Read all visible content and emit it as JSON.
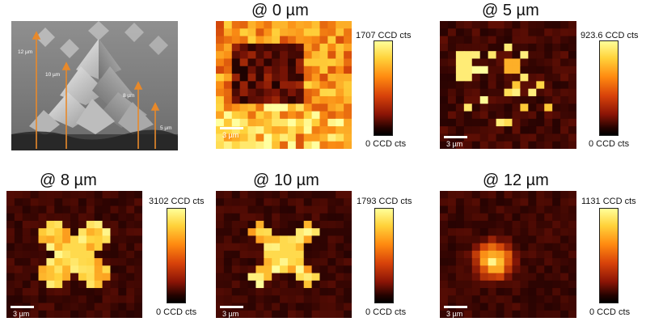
{
  "sem": {
    "icon": "sem-micrograph",
    "labels": [
      "12 µm",
      "10 µm",
      "8 µm",
      "5 µm"
    ]
  },
  "panels": [
    {
      "title": "@ 0 µm",
      "cmax": "1707 CCD cts",
      "cmin": "0 CCD cts",
      "scale": "3 µm",
      "pattern": "ring"
    },
    {
      "title": "@ 5 µm",
      "cmax": "923.6 CCD cts",
      "cmin": "0 CCD cts",
      "scale": "3 µm",
      "pattern": "sparse"
    },
    {
      "title": "@ 8 µm",
      "cmax": "3102 CCD cts",
      "cmin": "0 CCD cts",
      "scale": "3 µm",
      "pattern": "cross"
    },
    {
      "title": "@ 10 µm",
      "cmax": "1793 CCD cts",
      "cmin": "0 CCD cts",
      "scale": "3 µm",
      "pattern": "cross-small"
    },
    {
      "title": "@ 12 µm",
      "cmax": "1131 CCD cts",
      "cmin": "0 CCD cts",
      "scale": "3 µm",
      "pattern": "spot"
    }
  ]
}
